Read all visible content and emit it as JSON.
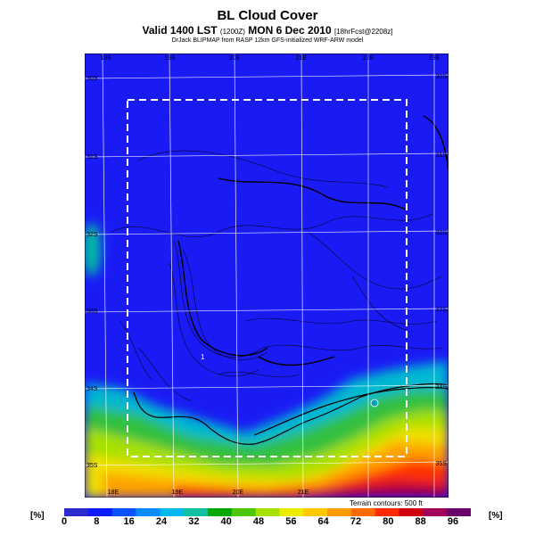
{
  "title": "BL Cloud Cover",
  "subtitle_main": "Valid 1400 LST",
  "subtitle_small1": "(1200Z)",
  "subtitle_date": "MON 6 Dec 2010",
  "subtitle_small2": "[18hrFcst@2208z]",
  "credit": "DrJack BLIPMAP from RASP 12km GFS-initialized WRF-ARW model",
  "terrain_note": "Terrain contours: 500 ft",
  "unit_left": "[%]",
  "unit_right": "[%]",
  "colorbar": {
    "ticks": [
      "0",
      "8",
      "16",
      "24",
      "32",
      "40",
      "48",
      "56",
      "64",
      "72",
      "80",
      "88",
      "96"
    ],
    "colors": [
      "#2a2acf",
      "#0a1cff",
      "#0a52ff",
      "#0a8aff",
      "#00b8ee",
      "#10c0a0",
      "#00a800",
      "#4cc800",
      "#a8e000",
      "#ecec00",
      "#ffc800",
      "#ff9a00",
      "#ff6a00",
      "#ff2a00",
      "#d00010",
      "#a0005a",
      "#6a006a"
    ]
  },
  "map": {
    "top_lon_labels": [
      "18E",
      "19E",
      "20E",
      "21E",
      "22E",
      "23E"
    ],
    "bottom_lon_labels": [
      "18E",
      "19E",
      "20E",
      "21E"
    ],
    "left_lat_labels": [
      "30S",
      "31S",
      "32S",
      "33S",
      "34S",
      "35S"
    ],
    "right_lat_labels": [
      "30S",
      "31S",
      "32S",
      "33S",
      "34S",
      "35S"
    ],
    "point_label": "1",
    "colors": {
      "clear": "#1a1af5",
      "coast_cloud": "#00c0a0"
    }
  }
}
